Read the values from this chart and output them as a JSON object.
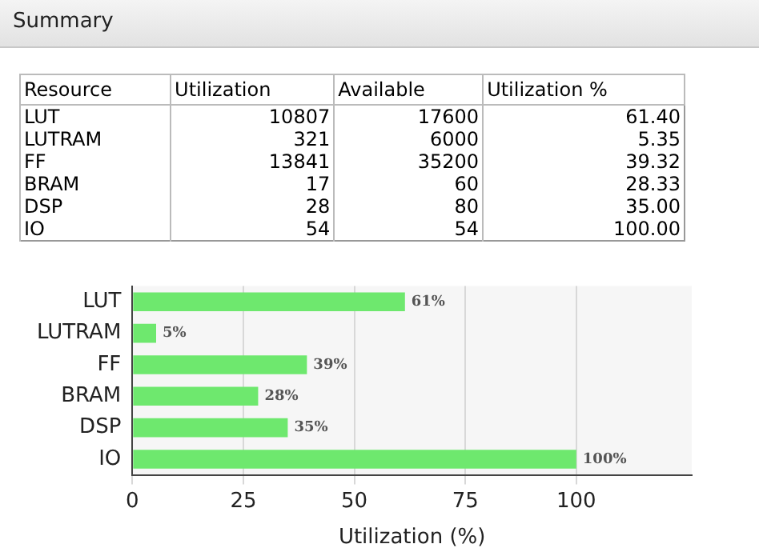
{
  "chart_data": [
    {
      "type": "other",
      "title": "Summary",
      "categories": [
        "Resource",
        "Utilization",
        "Available",
        "Utilization %"
      ],
      "annotations": [
        "LUT",
        "10807",
        "17600",
        "61.40",
        "LUTRAM",
        "321",
        "6000",
        "5.35",
        "FF",
        "13841",
        "35200",
        "39.32",
        "BRAM",
        "17",
        "60",
        "28.33",
        "DSP",
        "28",
        "80",
        "35.00",
        "IO",
        "54",
        "54",
        "100.00"
      ]
    },
    {
      "type": "bar",
      "orientation": "horizontal",
      "categories": [
        "LUT",
        "LUTRAM",
        "FF",
        "BRAM",
        "DSP",
        "IO"
      ],
      "values": [
        61.4,
        5.35,
        39.32,
        28.33,
        35.0,
        100.0
      ],
      "color": "#6ee86e",
      "value_labels": [
        "61%",
        "5%",
        "39%",
        "28%",
        "35%",
        "100%"
      ],
      "xlabel": "Utilization (%)",
      "xlim": [
        0,
        126
      ],
      "xticks": [
        0,
        25,
        50,
        75,
        100
      ],
      "grid": "x"
    }
  ]
}
